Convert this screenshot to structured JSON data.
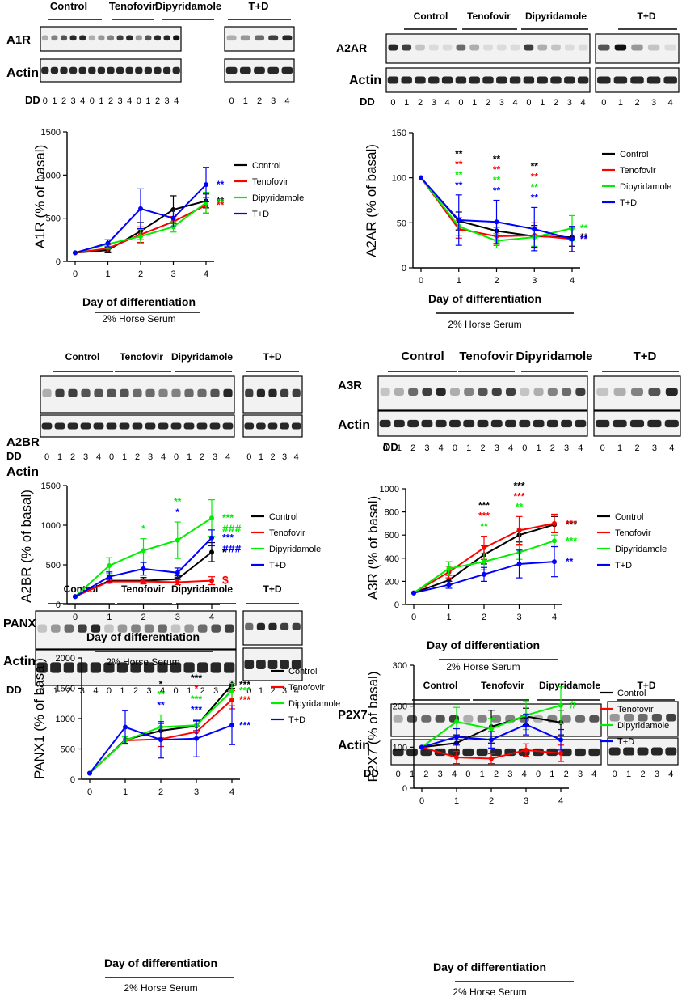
{
  "shared": {
    "day_ticks": [
      "0",
      "1",
      "2",
      "3",
      "4"
    ],
    "dd_label": "DD",
    "actin_label": "Actin",
    "group_labels": [
      "Control",
      "Tenofovir",
      "Dipyridamole",
      "T+D"
    ],
    "legend_labels": [
      "Control",
      "Tenofovir",
      "Dipyridamole",
      "T+D"
    ],
    "xlabel": "Day of differentiation",
    "serum_label": "2% Horse Serum",
    "colors": {
      "Control": "#000000",
      "Tenofovir": "#ff0000",
      "Dipyridamole": "#00ee00",
      "T+D": "#0000ff"
    }
  },
  "panels": [
    {
      "blot_label": "A1R",
      "ylabel": "A1R (% of basal)"
    },
    {
      "blot_label": "A2AR",
      "ylabel": "A2AR (% of basal)"
    },
    {
      "blot_label": "A2BR",
      "ylabel": "A2BR (% of basal)"
    },
    {
      "blot_label": "A3R",
      "ylabel": "A3R (% of basal)"
    },
    {
      "blot_label": "PANX1",
      "ylabel": "PANX1 (% of basal)"
    },
    {
      "blot_label": "P2X7",
      "ylabel": "P2X7 (% of basal)"
    }
  ],
  "chart_data": [
    {
      "type": "line",
      "title": "A1R",
      "xlabel": "Day of differentiation",
      "ylabel": "A1R (% of basal)",
      "x": [
        0,
        1,
        2,
        3,
        4
      ],
      "ylim": [
        0,
        1500
      ],
      "yticks": [
        "0",
        "500",
        "1000",
        "1500"
      ],
      "series": [
        {
          "name": "Control",
          "values": [
            100,
            130,
            350,
            600,
            700
          ],
          "errors": [
            0,
            30,
            100,
            160,
            80
          ]
        },
        {
          "name": "Tenofovir",
          "values": [
            100,
            150,
            310,
            460,
            650
          ],
          "errors": [
            0,
            40,
            90,
            60,
            90
          ]
        },
        {
          "name": "Dipyridamole",
          "values": [
            100,
            200,
            290,
            400,
            680
          ],
          "errors": [
            0,
            50,
            80,
            60,
            120
          ]
        },
        {
          "name": "T+D",
          "values": [
            100,
            210,
            610,
            500,
            890
          ],
          "errors": [
            0,
            40,
            230,
            100,
            200
          ]
        }
      ],
      "annotations": [
        {
          "x": 4,
          "series": "T+D",
          "text": "**"
        },
        {
          "x": 4,
          "series": "Control",
          "text": "**"
        },
        {
          "x": 4,
          "series": "Tenofovir",
          "text": "**"
        },
        {
          "x": 4,
          "series": "Dipyridamole",
          "text": "**"
        }
      ]
    },
    {
      "type": "line",
      "title": "A2AR",
      "xlabel": "Day of differentiation",
      "ylabel": "A2AR (% of basal)",
      "x": [
        0,
        1,
        2,
        3,
        4
      ],
      "ylim": [
        0,
        150
      ],
      "yticks": [
        "0",
        "50",
        "100",
        "150"
      ],
      "series": [
        {
          "name": "Control",
          "values": [
            100,
            52,
            41,
            35,
            34
          ],
          "errors": [
            0,
            10,
            10,
            12,
            10
          ]
        },
        {
          "name": "Tenofovir",
          "values": [
            100,
            43,
            35,
            36,
            32
          ],
          "errors": [
            0,
            10,
            10,
            14,
            14
          ]
        },
        {
          "name": "Dipyridamole",
          "values": [
            100,
            46,
            30,
            34,
            44
          ],
          "errors": [
            0,
            10,
            8,
            10,
            14
          ]
        },
        {
          "name": "T+D",
          "values": [
            100,
            53,
            51,
            43,
            32
          ],
          "errors": [
            0,
            28,
            24,
            24,
            14
          ]
        }
      ],
      "annotations": [
        {
          "x": 1,
          "series": "Control",
          "text": "**"
        },
        {
          "x": 1,
          "series": "Tenofovir",
          "text": "**"
        },
        {
          "x": 1,
          "series": "Dipyridamole",
          "text": "**"
        },
        {
          "x": 1,
          "series": "T+D",
          "text": "**"
        },
        {
          "x": 2,
          "series": "Control",
          "text": "**"
        },
        {
          "x": 2,
          "series": "Tenofovir",
          "text": "**"
        },
        {
          "x": 2,
          "series": "Dipyridamole",
          "text": "**"
        },
        {
          "x": 2,
          "series": "T+D",
          "text": "**"
        },
        {
          "x": 3,
          "series": "Control",
          "text": "**"
        },
        {
          "x": 3,
          "series": "Tenofovir",
          "text": "**"
        },
        {
          "x": 3,
          "series": "Dipyridamole",
          "text": "**"
        },
        {
          "x": 3,
          "series": "T+D",
          "text": "**"
        },
        {
          "x": 4,
          "series": "Control",
          "text": "**"
        },
        {
          "x": 4,
          "series": "Tenofovir",
          "text": "**"
        },
        {
          "x": 4,
          "series": "Dipyridamole",
          "text": "**"
        },
        {
          "x": 4,
          "series": "T+D",
          "text": "**"
        }
      ]
    },
    {
      "type": "line",
      "title": "A2BR",
      "xlabel": "Day of differentiation",
      "ylabel": "A2BR (% of basal)",
      "x": [
        0,
        1,
        2,
        3,
        4
      ],
      "ylim": [
        0,
        1500
      ],
      "yticks": [
        "0",
        "500",
        "1000",
        "1500"
      ],
      "series": [
        {
          "name": "Control",
          "values": [
            100,
            300,
            300,
            320,
            660
          ],
          "errors": [
            0,
            30,
            40,
            40,
            120
          ]
        },
        {
          "name": "Tenofovir",
          "values": [
            100,
            290,
            290,
            280,
            300
          ],
          "errors": [
            0,
            20,
            30,
            30,
            50
          ]
        },
        {
          "name": "Dipyridamole",
          "values": [
            100,
            490,
            680,
            810,
            1090
          ],
          "errors": [
            0,
            100,
            150,
            230,
            230
          ]
        },
        {
          "name": "T+D",
          "values": [
            100,
            350,
            450,
            400,
            840
          ],
          "errors": [
            0,
            60,
            80,
            60,
            100
          ]
        }
      ],
      "annotations": [
        {
          "x": 2,
          "series": "Dipyridamole",
          "text": "*"
        },
        {
          "x": 3,
          "series": "Dipyridamole",
          "text": "**"
        },
        {
          "x": 3,
          "series": "T+D",
          "text": "*"
        },
        {
          "x": 4,
          "series": "Dipyridamole",
          "text": "***"
        },
        {
          "x": 4,
          "series": "Dipyridamole",
          "text": "###"
        },
        {
          "x": 4,
          "series": "T+D",
          "text": "***"
        },
        {
          "x": 4,
          "series": "T+D",
          "text": "###"
        },
        {
          "x": 4,
          "series": "Control",
          "text": "*"
        },
        {
          "x": 4,
          "series": "Tenofovir",
          "text": "$"
        }
      ]
    },
    {
      "type": "line",
      "title": "A3R",
      "xlabel": "Day of differentiation",
      "ylabel": "A3R (% of basal)",
      "x": [
        0,
        1,
        2,
        3,
        4
      ],
      "ylim": [
        0,
        1000
      ],
      "yticks": [
        "0",
        "200",
        "400",
        "600",
        "800",
        "1000"
      ],
      "series": [
        {
          "name": "Control",
          "values": [
            100,
            210,
            430,
            600,
            690
          ],
          "errors": [
            0,
            40,
            80,
            60,
            70
          ]
        },
        {
          "name": "Tenofovir",
          "values": [
            100,
            280,
            490,
            640,
            700
          ],
          "errors": [
            0,
            50,
            100,
            120,
            80
          ]
        },
        {
          "name": "Dipyridamole",
          "values": [
            100,
            310,
            370,
            450,
            550
          ],
          "errors": [
            0,
            60,
            70,
            60,
            50
          ]
        },
        {
          "name": "T+D",
          "values": [
            100,
            170,
            260,
            350,
            370
          ],
          "errors": [
            0,
            30,
            60,
            120,
            130
          ]
        }
      ],
      "annotations": [
        {
          "x": 2,
          "series": "Control",
          "text": "***"
        },
        {
          "x": 2,
          "series": "Tenofovir",
          "text": "***"
        },
        {
          "x": 2,
          "series": "Dipyridamole",
          "text": "**"
        },
        {
          "x": 3,
          "series": "Control",
          "text": "***"
        },
        {
          "x": 3,
          "series": "Tenofovir",
          "text": "***"
        },
        {
          "x": 3,
          "series": "Dipyridamole",
          "text": "**"
        },
        {
          "x": 4,
          "series": "Control",
          "text": "***"
        },
        {
          "x": 4,
          "series": "Tenofovir",
          "text": "***"
        },
        {
          "x": 4,
          "series": "Dipyridamole",
          "text": "***"
        },
        {
          "x": 4,
          "series": "T+D",
          "text": "**"
        }
      ]
    },
    {
      "type": "line",
      "title": "PANX1",
      "xlabel": "Day of differentiation",
      "ylabel": "PANX1 (% of basal)",
      "x": [
        0,
        1,
        2,
        3,
        4
      ],
      "ylim": [
        0,
        2000
      ],
      "yticks": [
        "0",
        "500",
        "1000",
        "1500",
        "2000"
      ],
      "series": [
        {
          "name": "Control",
          "values": [
            100,
            650,
            800,
            880,
            1560
          ],
          "errors": [
            0,
            60,
            120,
            80,
            60
          ]
        },
        {
          "name": "Tenofovir",
          "values": [
            100,
            640,
            660,
            780,
            1310
          ],
          "errors": [
            0,
            60,
            120,
            100,
            150
          ]
        },
        {
          "name": "Dipyridamole",
          "values": [
            100,
            640,
            860,
            890,
            1460
          ],
          "errors": [
            0,
            60,
            200,
            100,
            120
          ]
        },
        {
          "name": "T+D",
          "values": [
            100,
            860,
            650,
            670,
            890
          ],
          "errors": [
            0,
            270,
            300,
            300,
            320
          ]
        }
      ],
      "annotations": [
        {
          "x": 2,
          "series": "Control",
          "text": "*"
        },
        {
          "x": 2,
          "series": "Dipyridamole",
          "text": "**"
        },
        {
          "x": 2,
          "series": "T+D",
          "text": "**"
        },
        {
          "x": 3,
          "series": "Control",
          "text": "***"
        },
        {
          "x": 3,
          "series": "Tenofovir",
          "text": "*"
        },
        {
          "x": 3,
          "series": "Dipyridamole",
          "text": "***"
        },
        {
          "x": 3,
          "series": "T+D",
          "text": "***"
        },
        {
          "x": 4,
          "series": "Control",
          "text": "***"
        },
        {
          "x": 4,
          "series": "Tenofovir",
          "text": "***"
        },
        {
          "x": 4,
          "series": "Dipyridamole",
          "text": "***"
        },
        {
          "x": 4,
          "series": "T+D",
          "text": "***"
        }
      ]
    },
    {
      "type": "line",
      "title": "P2X7",
      "xlabel": "Day of differentiation",
      "ylabel": "P2X7 (% of basal)",
      "x": [
        0,
        1,
        2,
        3,
        4
      ],
      "ylim": [
        0,
        300
      ],
      "yticks": [
        "0",
        "100",
        "200",
        "300"
      ],
      "series": [
        {
          "name": "Control",
          "values": [
            100,
            110,
            150,
            175,
            160
          ],
          "errors": [
            0,
            20,
            40,
            20,
            30
          ]
        },
        {
          "name": "Tenofovir",
          "values": [
            100,
            75,
            72,
            93,
            85
          ],
          "errors": [
            0,
            15,
            12,
            15,
            20
          ]
        },
        {
          "name": "Dipyridamole",
          "values": [
            100,
            162,
            145,
            178,
            202
          ],
          "errors": [
            0,
            35,
            25,
            35,
            45
          ]
        },
        {
          "name": "T+D",
          "values": [
            100,
            125,
            118,
            155,
            118
          ],
          "errors": [
            0,
            20,
            20,
            25,
            25
          ]
        }
      ],
      "annotations": [
        {
          "x": 4,
          "series": "Dipyridamole",
          "text": "#"
        }
      ]
    }
  ]
}
